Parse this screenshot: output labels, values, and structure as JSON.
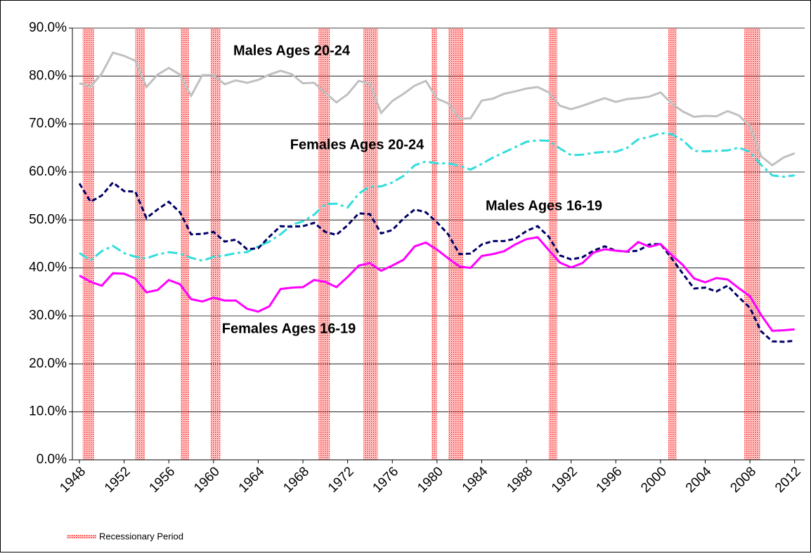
{
  "chart_data": {
    "type": "line",
    "x": [
      1948,
      1949,
      1950,
      1951,
      1952,
      1953,
      1954,
      1955,
      1956,
      1957,
      1958,
      1959,
      1960,
      1961,
      1962,
      1963,
      1964,
      1965,
      1966,
      1967,
      1968,
      1969,
      1970,
      1971,
      1972,
      1973,
      1974,
      1975,
      1976,
      1977,
      1978,
      1979,
      1980,
      1981,
      1982,
      1983,
      1984,
      1985,
      1986,
      1987,
      1988,
      1989,
      1990,
      1991,
      1992,
      1993,
      1994,
      1995,
      1996,
      1997,
      1998,
      1999,
      2000,
      2001,
      2002,
      2003,
      2004,
      2005,
      2006,
      2007,
      2008,
      2009,
      2010,
      2011,
      2012
    ],
    "series": [
      {
        "name": "Males Ages 20-24",
        "color": "#c0c0c0",
        "dash": "solid",
        "values": [
          78.5,
          77.8,
          80.5,
          84.9,
          84.2,
          83.2,
          77.7,
          80.3,
          81.7,
          80.3,
          75.9,
          80.2,
          80.2,
          78.3,
          79.1,
          78.6,
          79.2,
          80.3,
          81.1,
          80.4,
          78.5,
          78.6,
          76.5,
          74.5,
          76.2,
          79.0,
          78.4,
          72.3,
          74.8,
          76.3,
          78.0,
          79.0,
          75.3,
          74.3,
          71.1,
          71.2,
          74.9,
          75.3,
          76.3,
          76.8,
          77.4,
          77.7,
          76.6,
          73.8,
          73.1,
          73.8,
          74.6,
          75.4,
          74.6,
          75.2,
          75.4,
          75.7,
          76.6,
          74.3,
          72.6,
          71.5,
          71.7,
          71.6,
          72.7,
          71.8,
          69.6,
          63.3,
          61.4,
          63.0,
          63.9
        ]
      },
      {
        "name": "Females Ages 20-24",
        "color": "#33dddd",
        "dash": "dash-dot",
        "values": [
          43.1,
          41.6,
          43.5,
          44.6,
          43.1,
          42.3,
          42.0,
          42.8,
          43.3,
          43.0,
          42.1,
          41.5,
          42.3,
          42.6,
          43.1,
          43.3,
          44.5,
          45.5,
          47.0,
          49.0,
          49.7,
          51.1,
          53.3,
          53.4,
          52.6,
          55.5,
          57.0,
          57.0,
          57.8,
          59.2,
          61.4,
          62.2,
          61.8,
          61.8,
          61.3,
          60.5,
          61.7,
          63.0,
          64.1,
          65.2,
          66.3,
          66.6,
          66.5,
          64.9,
          63.5,
          63.6,
          64.0,
          64.2,
          64.2,
          65.0,
          66.8,
          67.3,
          68.1,
          67.9,
          66.6,
          64.4,
          64.3,
          64.4,
          64.5,
          65.1,
          64.2,
          61.5,
          59.3,
          59.0,
          59.3
        ]
      },
      {
        "name": "Males Ages 16-19",
        "color": "#000066",
        "dash": "dashed",
        "values": [
          57.6,
          53.8,
          55.1,
          57.8,
          56.0,
          55.9,
          50.4,
          52.2,
          53.8,
          51.6,
          47.0,
          47.1,
          47.5,
          45.5,
          45.9,
          43.9,
          44.1,
          46.5,
          48.7,
          48.6,
          48.7,
          49.4,
          47.5,
          46.9,
          48.9,
          51.4,
          51.2,
          47.2,
          47.9,
          50.3,
          52.2,
          51.6,
          49.5,
          47.0,
          42.9,
          43.0,
          44.9,
          45.6,
          45.6,
          46.1,
          47.7,
          48.7,
          46.5,
          42.6,
          41.8,
          42.2,
          43.6,
          44.5,
          43.6,
          43.4,
          43.6,
          44.9,
          45.0,
          42.0,
          38.8,
          35.7,
          35.9,
          35.1,
          36.3,
          33.9,
          31.7,
          26.8,
          24.7,
          24.6,
          24.8
        ]
      },
      {
        "name": "Females Ages 16-19",
        "color": "#ff00ff",
        "dash": "solid",
        "values": [
          38.4,
          37.1,
          36.3,
          38.9,
          38.8,
          37.8,
          34.9,
          35.4,
          37.5,
          36.6,
          33.5,
          33.0,
          33.8,
          33.2,
          33.2,
          31.5,
          30.9,
          32.0,
          35.6,
          35.9,
          36.0,
          37.5,
          37.1,
          36.0,
          38.1,
          40.5,
          41.0,
          39.4,
          40.5,
          41.7,
          44.5,
          45.3,
          43.8,
          42.0,
          40.3,
          40.0,
          42.5,
          42.9,
          43.5,
          44.9,
          46.0,
          46.4,
          43.7,
          41.1,
          40.1,
          41.0,
          43.2,
          43.9,
          43.6,
          43.4,
          45.4,
          44.4,
          45.0,
          42.7,
          40.6,
          37.8,
          37.0,
          37.9,
          37.6,
          35.8,
          34.1,
          30.2,
          26.9,
          27.0,
          27.2
        ]
      }
    ],
    "recessions": {
      "name": "Recessionary Period",
      "color": "#ff0000",
      "periods": [
        [
          1948.3,
          1949.3
        ],
        [
          1953.0,
          1953.85
        ],
        [
          1957.05,
          1957.8
        ],
        [
          1959.75,
          1960.6
        ],
        [
          1969.4,
          1970.4
        ],
        [
          1973.4,
          1974.7
        ],
        [
          1979.5,
          1980.0
        ],
        [
          1981.0,
          1982.35
        ],
        [
          1990.0,
          1990.75
        ],
        [
          2000.7,
          2001.45
        ],
        [
          2007.5,
          2008.9
        ]
      ]
    },
    "xlim": [
      1947.37,
      2012.9
    ],
    "xticks": [
      1948,
      1952,
      1956,
      1960,
      1964,
      1968,
      1972,
      1976,
      1980,
      1984,
      1988,
      1992,
      1996,
      2000,
      2004,
      2008,
      2012
    ],
    "ylim": [
      0,
      90
    ],
    "yticks": [
      {
        "value": 0,
        "label": "0.0%"
      },
      {
        "value": 10,
        "label": "10.0%"
      },
      {
        "value": 20,
        "label": "20.0%"
      },
      {
        "value": 30,
        "label": "30.0%"
      },
      {
        "value": 40,
        "label": "40.0%"
      },
      {
        "value": 50,
        "label": "50.0%"
      },
      {
        "value": 60,
        "label": "60.0%"
      },
      {
        "value": 70,
        "label": "70.0%"
      },
      {
        "value": 80,
        "label": "80.0%"
      },
      {
        "value": 90,
        "label": "90.0%"
      }
    ],
    "grid": true
  }
}
